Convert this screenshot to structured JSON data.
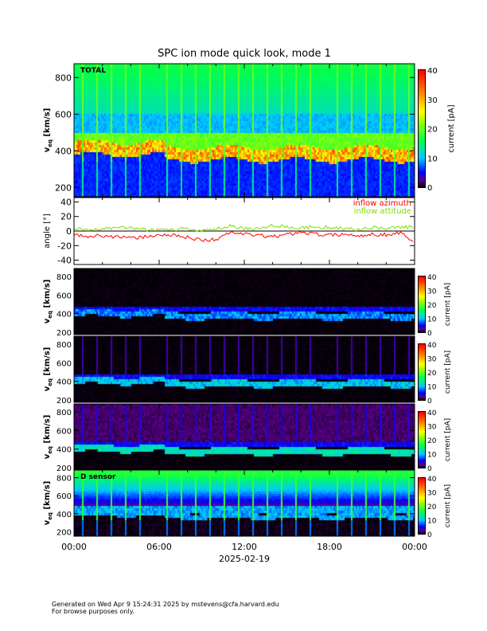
{
  "chart_data": {
    "title": "SPC ion mode quick look, mode 1",
    "x_axis": {
      "tick_labels": [
        "00:00",
        "06:00",
        "12:00",
        "18:00",
        "00:00"
      ],
      "label": "2025-02-19",
      "range_hours": [
        0,
        24
      ]
    },
    "colorbar": {
      "label": "current [pA]",
      "range": [
        0,
        40
      ],
      "ticks": [
        0,
        10,
        20,
        30,
        40
      ],
      "colormap": "rainbow (black-purple-blue-cyan-green-yellow-red)"
    },
    "panels": [
      {
        "type": "heatmap",
        "label": "TOTAL",
        "ylabel_main": "v",
        "ylabel_sub": "eq",
        "ylabel_unit": "[km/s]",
        "ylim": [
          150,
          875
        ],
        "yticks": [
          200,
          400,
          600,
          800
        ]
      },
      {
        "type": "line",
        "ylabel": "angle [°]",
        "ylim": [
          -46,
          46
        ],
        "yticks": [
          -40,
          -20,
          0,
          20,
          40
        ],
        "x_hours": [
          0,
          1,
          2,
          3,
          4,
          5,
          6,
          7,
          8,
          9,
          10,
          11,
          12,
          13,
          14,
          15,
          16,
          17,
          18,
          19,
          20,
          21,
          22,
          23,
          24
        ],
        "series": [
          {
            "name": "inflow azimuth",
            "color": "#ff0000",
            "values": [
              -5,
              -8,
              -6,
              -8,
              -10,
              -8,
              -5,
              -6,
              -9,
              -12,
              -12,
              -2,
              -4,
              -6,
              -8,
              -5,
              -1,
              -4,
              -6,
              -4,
              -7,
              -4,
              -5,
              -2,
              -15
            ]
          },
          {
            "name": "inflow attitude",
            "color": "#7fdd00",
            "values": [
              3,
              2,
              3,
              4,
              5,
              2,
              3,
              2,
              4,
              0,
              2,
              8,
              4,
              3,
              8,
              6,
              4,
              6,
              5,
              3,
              2,
              5,
              3,
              6,
              5
            ]
          }
        ]
      },
      {
        "type": "heatmap",
        "label": "",
        "ylabel_main": "v",
        "ylabel_sub": "eq",
        "ylabel_unit": "[km/s]",
        "ylim": [
          175,
          885
        ],
        "yticks": [
          200,
          400,
          600,
          800
        ]
      },
      {
        "type": "heatmap",
        "label": "",
        "ylabel_main": "v",
        "ylabel_sub": "eq",
        "ylabel_unit": "[km/s]",
        "ylim": [
          175,
          885
        ],
        "yticks": [
          200,
          400,
          600,
          800
        ]
      },
      {
        "type": "heatmap",
        "label": "",
        "ylabel_main": "v",
        "ylabel_sub": "eq",
        "ylabel_unit": "[km/s]",
        "ylim": [
          175,
          885
        ],
        "yticks": [
          200,
          400,
          600,
          800
        ]
      },
      {
        "type": "heatmap",
        "label": "D sensor",
        "ylabel_main": "v",
        "ylabel_sub": "eq",
        "ylabel_unit": "[km/s]",
        "ylim": [
          150,
          885
        ],
        "yticks": [
          200,
          400,
          600,
          800
        ]
      }
    ]
  },
  "footer": {
    "line1": "Generated on Wed Apr  9 15:24:31 2025 by mstevens@cfa.harvard.edu",
    "line2": "For browse purposes only."
  }
}
